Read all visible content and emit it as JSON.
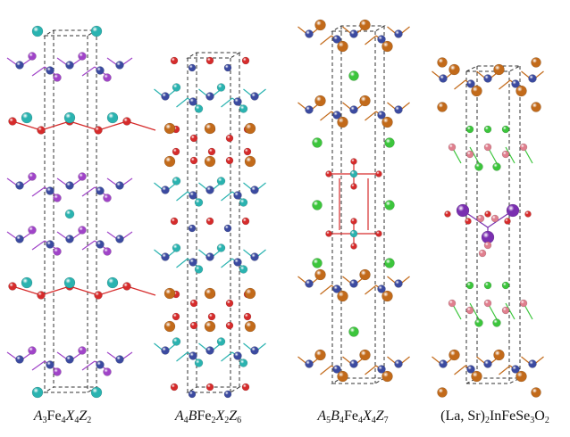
{
  "figure": {
    "panels": [
      {
        "id": "a3fe4x4z2",
        "formula": [
          {
            "t": "A",
            "i": true
          },
          {
            "t": "3",
            "sub": true
          },
          {
            "t": "Fe"
          },
          {
            "t": "4",
            "sub": true
          },
          {
            "t": "X",
            "i": true
          },
          {
            "t": "4",
            "sub": true
          },
          {
            "t": "Z",
            "i": true
          },
          {
            "t": "2",
            "sub": true
          }
        ]
      },
      {
        "id": "a4bfe2x2z6",
        "formula": [
          {
            "t": "A",
            "i": true
          },
          {
            "t": "4",
            "sub": true
          },
          {
            "t": "B",
            "i": true
          },
          {
            "t": "Fe"
          },
          {
            "t": "2",
            "sub": true
          },
          {
            "t": "X",
            "i": true
          },
          {
            "t": "2",
            "sub": true
          },
          {
            "t": "Z",
            "i": true
          },
          {
            "t": "6",
            "sub": true
          }
        ]
      },
      {
        "id": "a5b4fe4x4z7",
        "formula": [
          {
            "t": "A",
            "i": true
          },
          {
            "t": "5",
            "sub": true
          },
          {
            "t": "B",
            "i": true
          },
          {
            "t": "4",
            "sub": true
          },
          {
            "t": "Fe"
          },
          {
            "t": "4",
            "sub": true
          },
          {
            "t": "X",
            "i": true
          },
          {
            "t": "4",
            "sub": true
          },
          {
            "t": "Z",
            "i": true
          },
          {
            "t": "7",
            "sub": true
          }
        ]
      },
      {
        "id": "lasr2infese3o2",
        "formula": [
          {
            "t": "(La, Sr)"
          },
          {
            "t": "2",
            "sub": true
          },
          {
            "t": "InFeSe"
          },
          {
            "t": "3",
            "sub": true
          },
          {
            "t": "O"
          },
          {
            "t": "2",
            "sub": true
          }
        ]
      }
    ]
  },
  "colors": {
    "iron": "#3b4aa0",
    "teal": "#2ab3b0",
    "oxygen": "#d62b2b",
    "purple": "#a044c8",
    "bronze": "#c26a1a",
    "green": "#3cc53c",
    "pink": "#e07f8e",
    "darkpurple": "#7a2fb0",
    "cell": "#333333"
  }
}
